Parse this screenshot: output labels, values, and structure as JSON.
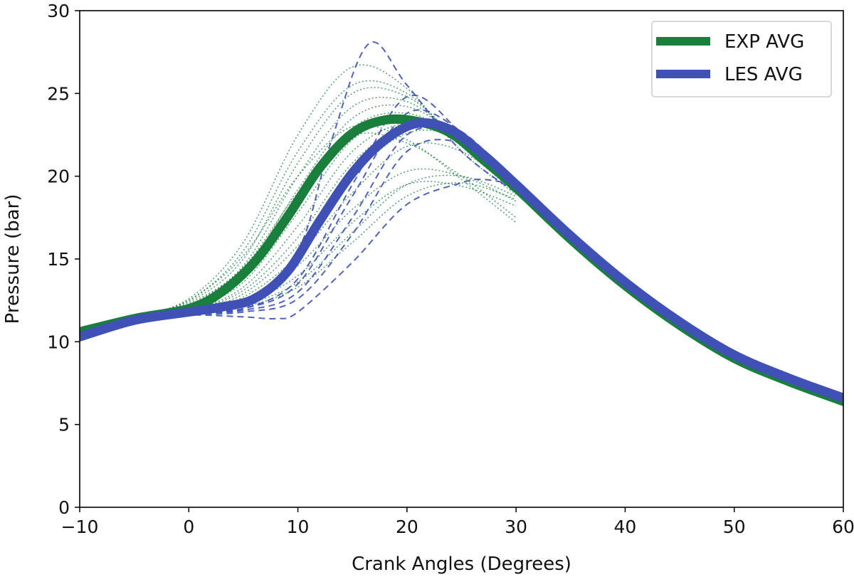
{
  "chart_data": {
    "type": "line",
    "title": "",
    "xlabel": "Crank Angles (Degrees)",
    "ylabel": "Pressure (bar)",
    "xlim": [
      -10,
      60
    ],
    "ylim": [
      0,
      30
    ],
    "xticks": [
      -10,
      0,
      10,
      20,
      30,
      40,
      50,
      60
    ],
    "yticks": [
      0,
      5,
      10,
      15,
      20,
      25,
      30
    ],
    "xtick_labels": [
      "−10",
      "0",
      "10",
      "20",
      "30",
      "40",
      "50",
      "60"
    ],
    "ytick_labels": [
      "0",
      "5",
      "10",
      "15",
      "20",
      "25",
      "30"
    ],
    "grid": false,
    "legend_position": "top-right",
    "colors": {
      "exp": "#1a7f3c",
      "les": "#3f51b5"
    },
    "series": [
      {
        "name": "EXP AVG",
        "style": "solid-thick",
        "color": "#1a7f3c",
        "x": [
          -10,
          -5,
          0,
          3,
          6,
          9,
          12,
          15,
          18,
          21,
          24,
          27,
          30,
          35,
          40,
          45,
          50,
          55,
          60
        ],
        "y": [
          10.6,
          11.4,
          12.0,
          13.0,
          14.8,
          17.5,
          20.5,
          22.6,
          23.4,
          23.3,
          22.6,
          21.0,
          19.3,
          16.2,
          13.4,
          11.0,
          9.0,
          7.6,
          6.4
        ]
      },
      {
        "name": "LES AVG",
        "style": "solid-thick",
        "color": "#3f51b5",
        "x": [
          -10,
          -5,
          0,
          3,
          6,
          9,
          12,
          15,
          18,
          21,
          24,
          27,
          30,
          35,
          40,
          45,
          50,
          55,
          60
        ],
        "y": [
          10.3,
          11.3,
          11.8,
          12.1,
          12.6,
          14.2,
          17.3,
          20.2,
          22.2,
          23.2,
          22.8,
          21.3,
          19.5,
          16.4,
          13.6,
          11.2,
          9.2,
          7.8,
          6.6
        ]
      }
    ],
    "individual_cycles": {
      "exp": [
        [
          [
            -10,
            10.6
          ],
          [
            -5,
            11.5
          ],
          [
            0,
            12.6
          ],
          [
            5,
            16.0
          ],
          [
            10,
            22.5
          ],
          [
            15,
            26.6
          ],
          [
            20,
            25.3
          ],
          [
            25,
            21.5
          ],
          [
            30,
            18.9
          ]
        ],
        [
          [
            -10,
            10.6
          ],
          [
            -5,
            11.5
          ],
          [
            0,
            12.5
          ],
          [
            5,
            15.5
          ],
          [
            10,
            21.5
          ],
          [
            15,
            25.5
          ],
          [
            20,
            25.0
          ],
          [
            25,
            21.8
          ],
          [
            30,
            19.0
          ]
        ],
        [
          [
            -10,
            10.6
          ],
          [
            -5,
            11.5
          ],
          [
            0,
            12.4
          ],
          [
            5,
            15.0
          ],
          [
            10,
            20.8
          ],
          [
            15,
            25.0
          ],
          [
            20,
            24.8
          ],
          [
            25,
            22.0
          ],
          [
            30,
            19.0
          ]
        ],
        [
          [
            -10,
            10.6
          ],
          [
            -5,
            11.4
          ],
          [
            0,
            12.3
          ],
          [
            5,
            14.6
          ],
          [
            10,
            20.0
          ],
          [
            15,
            24.2
          ],
          [
            20,
            24.5
          ],
          [
            25,
            22.1
          ],
          [
            30,
            19.1
          ]
        ],
        [
          [
            -10,
            10.6
          ],
          [
            -5,
            11.4
          ],
          [
            0,
            12.2
          ],
          [
            5,
            14.2
          ],
          [
            10,
            19.2
          ],
          [
            15,
            23.5
          ],
          [
            20,
            24.2
          ],
          [
            25,
            22.2
          ],
          [
            30,
            19.2
          ]
        ],
        [
          [
            -10,
            10.6
          ],
          [
            -5,
            11.4
          ],
          [
            0,
            12.1
          ],
          [
            5,
            13.9
          ],
          [
            10,
            18.5
          ],
          [
            15,
            22.9
          ],
          [
            20,
            23.8
          ],
          [
            25,
            22.2
          ],
          [
            30,
            19.2
          ]
        ],
        [
          [
            -10,
            10.6
          ],
          [
            -5,
            11.4
          ],
          [
            0,
            12.0
          ],
          [
            5,
            13.6
          ],
          [
            10,
            17.8
          ],
          [
            15,
            22.2
          ],
          [
            20,
            23.5
          ],
          [
            25,
            22.3
          ],
          [
            30,
            19.3
          ]
        ],
        [
          [
            -10,
            10.6
          ],
          [
            -5,
            11.4
          ],
          [
            0,
            11.9
          ],
          [
            5,
            13.3
          ],
          [
            10,
            17.0
          ],
          [
            15,
            21.5
          ],
          [
            20,
            23.2
          ],
          [
            25,
            22.3
          ],
          [
            30,
            19.3
          ]
        ],
        [
          [
            -10,
            10.6
          ],
          [
            -5,
            11.4
          ],
          [
            0,
            11.9
          ],
          [
            5,
            13.1
          ],
          [
            10,
            16.3
          ],
          [
            15,
            20.8
          ],
          [
            20,
            23.0
          ],
          [
            25,
            22.3
          ],
          [
            30,
            19.3
          ]
        ],
        [
          [
            -10,
            10.6
          ],
          [
            -5,
            11.4
          ],
          [
            0,
            11.8
          ],
          [
            5,
            12.9
          ],
          [
            10,
            15.8
          ],
          [
            15,
            20.0
          ],
          [
            20,
            22.6
          ],
          [
            25,
            22.2
          ],
          [
            30,
            19.3
          ]
        ],
        [
          [
            -10,
            10.6
          ],
          [
            -5,
            11.4
          ],
          [
            0,
            11.8
          ],
          [
            5,
            12.7
          ],
          [
            10,
            15.2
          ],
          [
            15,
            19.0
          ],
          [
            20,
            21.8
          ],
          [
            25,
            21.5
          ],
          [
            30,
            19.0
          ]
        ],
        [
          [
            -10,
            10.6
          ],
          [
            -5,
            11.3
          ],
          [
            0,
            11.8
          ],
          [
            5,
            12.5
          ],
          [
            10,
            14.6
          ],
          [
            15,
            18.0
          ],
          [
            20,
            20.3
          ],
          [
            25,
            20.0
          ],
          [
            30,
            18.5
          ]
        ],
        [
          [
            -10,
            10.6
          ],
          [
            -5,
            11.3
          ],
          [
            0,
            11.7
          ],
          [
            5,
            12.3
          ],
          [
            10,
            14.0
          ],
          [
            15,
            17.2
          ],
          [
            20,
            19.5
          ],
          [
            25,
            19.4
          ],
          [
            30,
            18.2
          ]
        ],
        [
          [
            -10,
            10.6
          ],
          [
            -5,
            11.3
          ],
          [
            0,
            11.7
          ],
          [
            5,
            12.2
          ],
          [
            10,
            13.6
          ],
          [
            15,
            16.6
          ],
          [
            20,
            19.5
          ],
          [
            25,
            20.0
          ],
          [
            30,
            18.8
          ]
        ],
        [
          [
            -10,
            10.6
          ],
          [
            -5,
            11.3
          ],
          [
            0,
            11.7
          ],
          [
            5,
            12.1
          ],
          [
            10,
            13.3
          ],
          [
            15,
            16.0
          ],
          [
            20,
            18.8
          ],
          [
            25,
            19.6
          ],
          [
            30,
            18.6
          ]
        ],
        [
          [
            -10,
            10.6
          ],
          [
            -5,
            11.5
          ],
          [
            0,
            12.5
          ],
          [
            5,
            15.2
          ],
          [
            10,
            20.0
          ],
          [
            15,
            23.0
          ],
          [
            20,
            22.2
          ],
          [
            25,
            19.8
          ],
          [
            30,
            17.2
          ]
        ],
        [
          [
            -10,
            10.6
          ],
          [
            -5,
            11.4
          ],
          [
            0,
            12.2
          ],
          [
            5,
            14.5
          ],
          [
            10,
            19.0
          ],
          [
            15,
            22.4
          ],
          [
            20,
            22.0
          ],
          [
            25,
            20.0
          ],
          [
            30,
            17.5
          ]
        ]
      ],
      "les": [
        [
          [
            -10,
            10.3
          ],
          [
            -5,
            11.2
          ],
          [
            0,
            11.7
          ],
          [
            5,
            12.2
          ],
          [
            10,
            15.5
          ],
          [
            13,
            22.0
          ],
          [
            16.5,
            28.0
          ],
          [
            20,
            25.5
          ],
          [
            25,
            21.5
          ],
          [
            30,
            19.0
          ]
        ],
        [
          [
            -10,
            10.3
          ],
          [
            -5,
            11.2
          ],
          [
            0,
            11.7
          ],
          [
            5,
            12.0
          ],
          [
            10,
            13.8
          ],
          [
            15,
            19.5
          ],
          [
            20,
            24.8
          ],
          [
            25,
            22.6
          ],
          [
            30,
            19.5
          ]
        ],
        [
          [
            -10,
            10.3
          ],
          [
            -5,
            11.2
          ],
          [
            0,
            11.7
          ],
          [
            5,
            12.0
          ],
          [
            10,
            13.5
          ],
          [
            15,
            18.8
          ],
          [
            20,
            23.8
          ],
          [
            25,
            22.7
          ],
          [
            30,
            19.6
          ]
        ],
        [
          [
            -10,
            10.3
          ],
          [
            -5,
            11.2
          ],
          [
            0,
            11.7
          ],
          [
            5,
            11.9
          ],
          [
            10,
            13.0
          ],
          [
            15,
            17.5
          ],
          [
            20,
            22.5
          ],
          [
            25,
            22.4
          ],
          [
            30,
            19.7
          ]
        ],
        [
          [
            -10,
            10.3
          ],
          [
            -5,
            11.2
          ],
          [
            0,
            11.6
          ],
          [
            5,
            11.8
          ],
          [
            10,
            12.6
          ],
          [
            15,
            16.5
          ],
          [
            20,
            21.5
          ],
          [
            25,
            22.0
          ],
          [
            30,
            19.8
          ]
        ],
        [
          [
            -10,
            10.3
          ],
          [
            -5,
            11.2
          ],
          [
            0,
            11.6
          ],
          [
            5,
            11.5
          ],
          [
            8,
            11.4
          ],
          [
            10,
            11.8
          ],
          [
            15,
            14.8
          ],
          [
            20,
            18.3
          ],
          [
            25,
            19.6
          ],
          [
            27,
            19.8
          ],
          [
            30,
            19.5
          ]
        ]
      ]
    }
  },
  "legend": {
    "items": [
      {
        "label": "EXP AVG",
        "color": "#1a7f3c"
      },
      {
        "label": "LES AVG",
        "color": "#3f51b5"
      }
    ]
  }
}
